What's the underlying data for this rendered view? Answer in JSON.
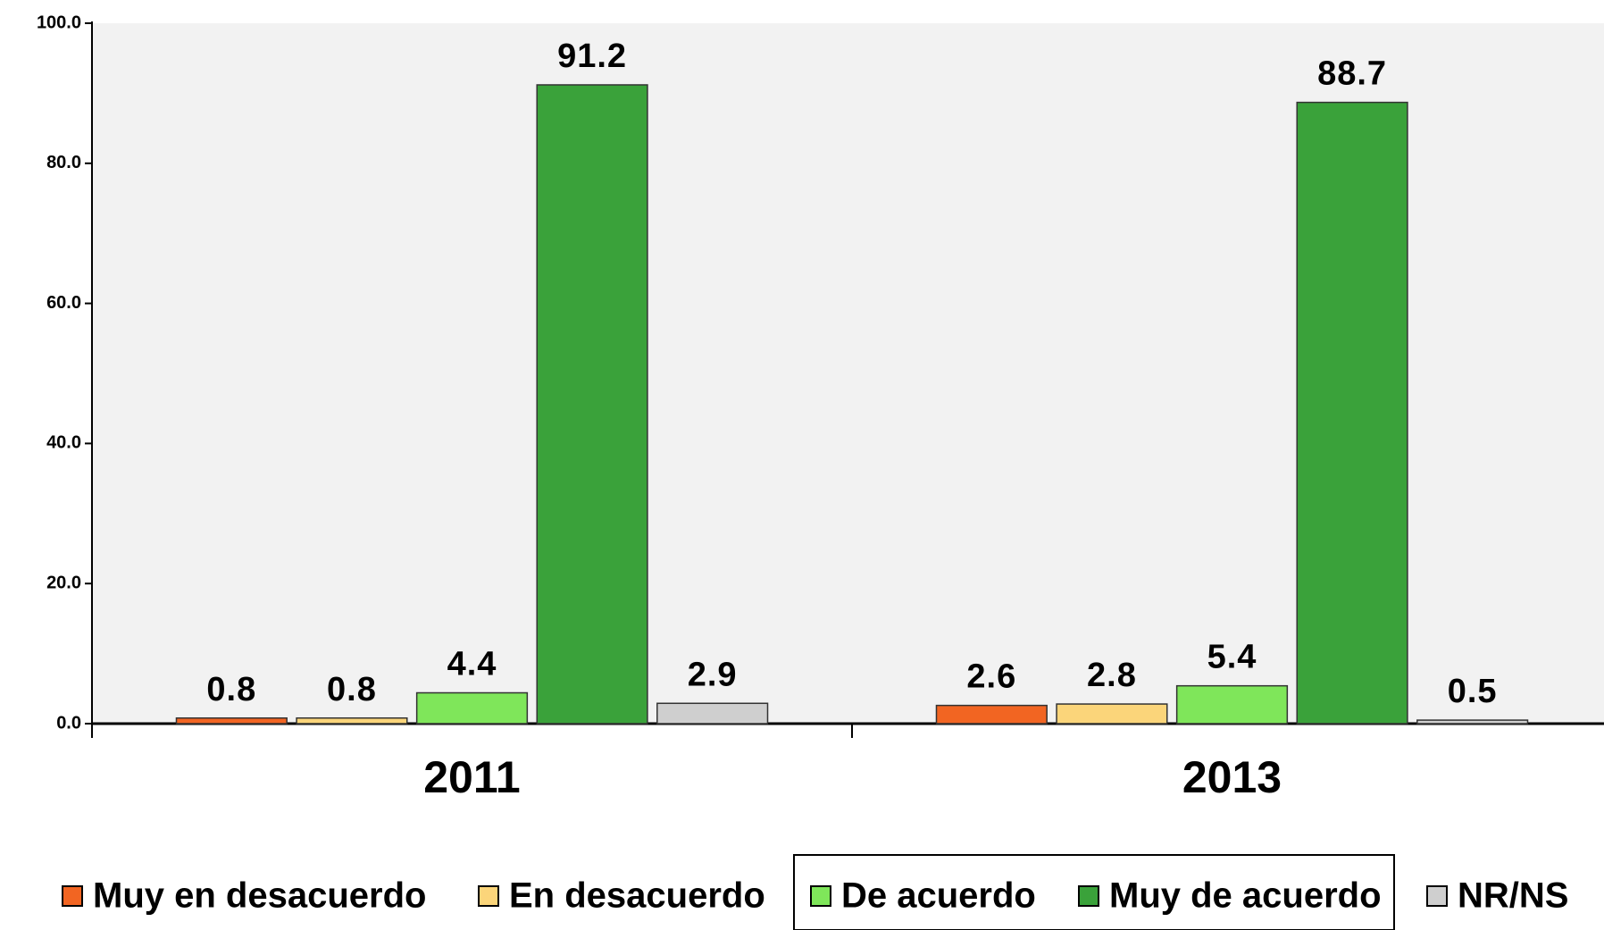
{
  "chart_data": {
    "type": "bar",
    "categories": [
      "2011",
      "2013"
    ],
    "series": [
      {
        "name": "Muy en desacuerdo",
        "color": "#f26522",
        "values": [
          0.8,
          2.6
        ]
      },
      {
        "name": "En desacuerdo",
        "color": "#fbd57a",
        "values": [
          0.8,
          2.8
        ]
      },
      {
        "name": "De acuerdo",
        "color": "#7fe65a",
        "values": [
          4.4,
          5.4
        ]
      },
      {
        "name": "Muy de acuerdo",
        "color": "#3aa23a",
        "values": [
          91.2,
          88.7
        ]
      },
      {
        "name": "NR/NS",
        "color": "#cfcfcf",
        "values": [
          2.9,
          0.5
        ]
      }
    ],
    "ylim": [
      0,
      100
    ],
    "yticks": [
      {
        "value": 0,
        "label": "0.0"
      },
      {
        "value": 20,
        "label": "20.0"
      },
      {
        "value": 40,
        "label": "40.0"
      },
      {
        "value": 60,
        "label": "60.0"
      },
      {
        "value": 80,
        "label": "80.0"
      },
      {
        "value": 100,
        "label": "100.0"
      }
    ],
    "legend": "bottom"
  }
}
